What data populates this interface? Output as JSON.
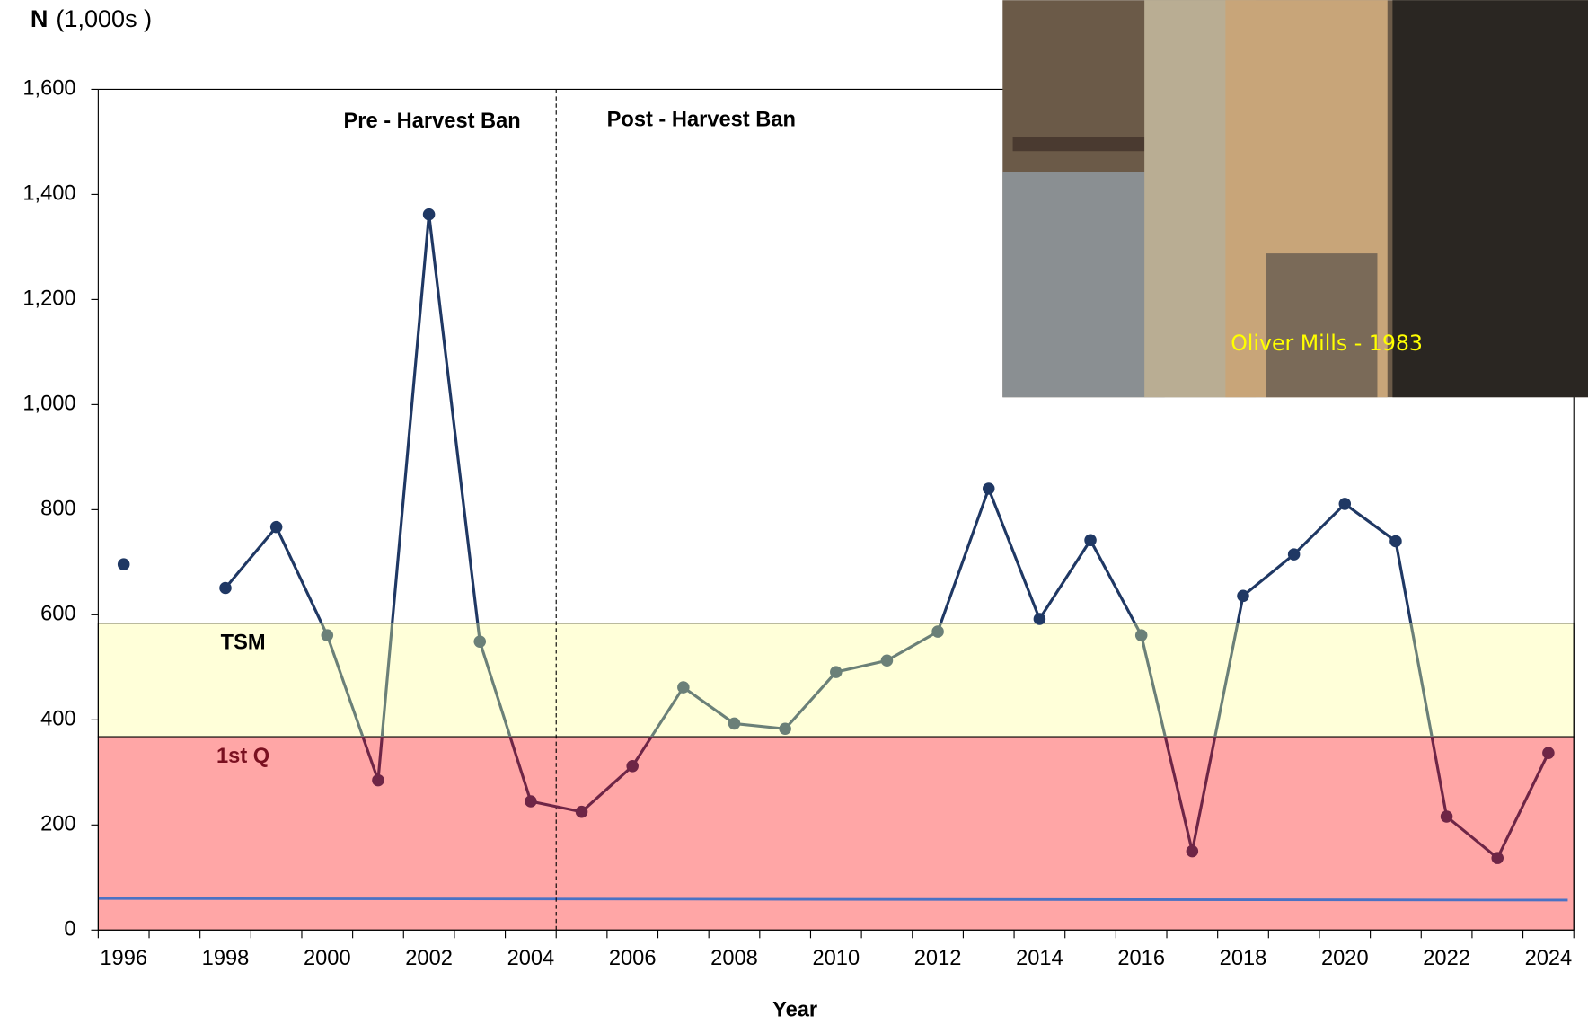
{
  "chart_data": {
    "type": "line",
    "ylabel_symbol": "N",
    "ylabel_unit": "(1,000s )",
    "xlabel": "Year",
    "categories": [
      "1996",
      null,
      "1998",
      null,
      "2000",
      null,
      "2002",
      null,
      "2004",
      null,
      "2006",
      null,
      "2008",
      null,
      "2010",
      null,
      "2012",
      null,
      "2014",
      null,
      "2016",
      null,
      "2018",
      null,
      "2020",
      null,
      "2022",
      null,
      "2024"
    ],
    "series": [
      {
        "values": [
          696,
          null,
          651,
          767,
          561,
          285,
          1362,
          549,
          245,
          225,
          312,
          462,
          393,
          383,
          491,
          513,
          568,
          840,
          592,
          742,
          561,
          150,
          636,
          715,
          811,
          740,
          216,
          137,
          337
        ],
        "colors": {
          "high": "#1f3864",
          "mid": "#6b8078",
          "low": "#6e2546"
        }
      }
    ],
    "ylim": [
      0,
      1600
    ],
    "yticks": [
      0,
      200,
      400,
      600,
      800,
      {
        "value": 1000,
        "label": "1,000"
      },
      {
        "value": 1200,
        "label": "1,200"
      },
      {
        "value": 1400,
        "label": "1,400"
      },
      {
        "value": 1600,
        "label": "1,600"
      }
    ],
    "bands": [
      {
        "label": "TSM",
        "from": 368,
        "to": 584,
        "color": "#ffffd9",
        "label_color": "#000000"
      },
      {
        "label": "1st Q",
        "from": 0,
        "to": 368,
        "color": "#ffa6a6",
        "label_color": "#7a1020"
      }
    ],
    "reference_line": {
      "from": 60,
      "to": 57,
      "color": "#4a72c4"
    },
    "annotations": [
      "Pre - Harvest Ban",
      "Post - Harvest Ban"
    ],
    "photo_caption": "Oliver  Mills - 1983"
  }
}
